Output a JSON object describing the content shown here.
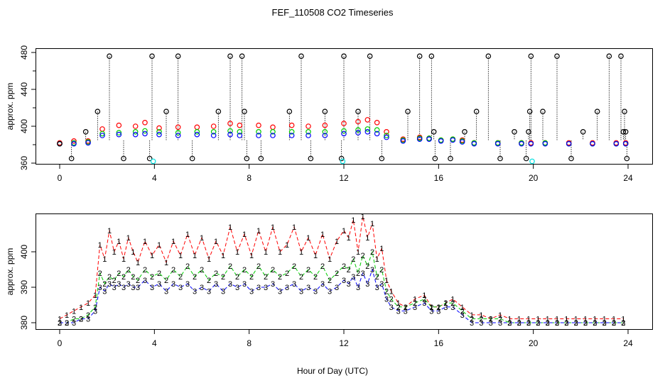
{
  "chart_data": [
    {
      "type": "scatter",
      "title": "FEF_110508  CO2 Timeseries",
      "xlabel": "",
      "ylabel": "approx. ppm",
      "xlim": [
        0,
        24
      ],
      "ylim": [
        360,
        480
      ],
      "x_ticks": [
        "0",
        "4",
        "8",
        "12",
        "16",
        "20",
        "24"
      ],
      "y_ticks": [
        "360",
        "400",
        "440",
        "480"
      ],
      "grid": false,
      "series": [
        {
          "color": "#000000",
          "marker": "circle",
          "x": [
            0.0,
            0.5,
            1.1,
            1.6,
            2.1,
            2.7,
            3.8,
            3.9,
            4.5,
            5.0,
            5.6,
            6.7,
            7.2,
            7.7,
            7.8,
            7.9,
            8.5,
            9.7,
            10.2,
            10.6,
            11.2,
            11.9,
            12.0,
            12.6,
            13.1,
            13.6,
            14.7,
            15.2,
            15.7,
            15.8,
            15.85,
            16.5,
            17.1,
            17.6,
            18.1,
            18.6,
            19.2,
            19.7,
            19.8,
            19.85,
            19.9,
            20.4,
            21.0,
            21.6,
            22.1,
            22.7,
            23.2,
            23.7,
            23.8,
            23.85,
            23.9,
            23.95
          ],
          "y": [
            381,
            365,
            394,
            416,
            476,
            365,
            365,
            476,
            416,
            476,
            365,
            416,
            476,
            476,
            416,
            365,
            365,
            416,
            476,
            365,
            416,
            365,
            476,
            416,
            476,
            365,
            416,
            476,
            476,
            394,
            365,
            365,
            394,
            416,
            476,
            365,
            394,
            365,
            394,
            416,
            476,
            416,
            476,
            365,
            394,
            416,
            476,
            476,
            394,
            416,
            394,
            365
          ]
        },
        {
          "color": "#ff0000",
          "marker": "circle",
          "x": [
            0.0,
            0.6,
            1.2,
            1.8,
            2.5,
            3.2,
            3.6,
            4.2,
            5.0,
            5.8,
            6.5,
            7.2,
            7.6,
            8.4,
            9.0,
            9.8,
            10.5,
            11.2,
            12.0,
            12.6,
            13.0,
            13.4,
            13.8,
            14.5,
            15.2,
            15.6,
            16.1,
            16.6,
            17.0,
            17.5,
            18.5,
            19.5,
            19.9,
            20.5,
            21.5,
            22.5,
            23.5,
            23.9
          ],
          "y": [
            382,
            384,
            384,
            397,
            401,
            400,
            404,
            398,
            399,
            399,
            400,
            403,
            401,
            401,
            399,
            401,
            400,
            401,
            403,
            405,
            407,
            404,
            394,
            386,
            388,
            387,
            385,
            386,
            385,
            382,
            382,
            382,
            382,
            382,
            382,
            382,
            382,
            382
          ]
        },
        {
          "color": "#00cc00",
          "marker": "circle",
          "x": [
            0.0,
            0.6,
            1.2,
            1.8,
            2.5,
            3.2,
            3.6,
            4.2,
            5.0,
            5.8,
            6.5,
            7.2,
            7.6,
            8.4,
            9.0,
            9.8,
            10.5,
            11.2,
            12.0,
            12.6,
            13.0,
            13.4,
            13.8,
            14.5,
            15.2,
            15.6,
            16.1,
            16.6,
            17.0,
            17.5,
            18.5,
            19.5,
            19.9,
            20.5,
            21.5,
            22.5,
            23.5,
            23.9
          ],
          "y": [
            381,
            382,
            383,
            392,
            393,
            394,
            395,
            394,
            393,
            394,
            394,
            395,
            394,
            394,
            394,
            394,
            394,
            394,
            395,
            396,
            397,
            396,
            390,
            385,
            387,
            387,
            385,
            386,
            384,
            382,
            382,
            382,
            381,
            382,
            381,
            381,
            381,
            381
          ]
        },
        {
          "color": "#0000ff",
          "marker": "circle",
          "x": [
            0.0,
            0.6,
            1.2,
            1.8,
            2.5,
            3.2,
            3.6,
            4.2,
            5.0,
            5.8,
            6.5,
            7.2,
            7.6,
            8.4,
            9.0,
            9.8,
            10.5,
            11.2,
            12.0,
            12.6,
            13.0,
            13.4,
            13.8,
            14.5,
            15.2,
            15.6,
            16.1,
            16.6,
            17.0,
            17.5,
            18.5,
            19.5,
            19.9,
            20.5,
            21.5,
            22.5,
            23.5,
            23.9
          ],
          "y": [
            381,
            381,
            382,
            390,
            391,
            391,
            392,
            391,
            390,
            391,
            390,
            391,
            390,
            390,
            390,
            390,
            390,
            390,
            392,
            393,
            394,
            392,
            388,
            384,
            386,
            386,
            384,
            385,
            383,
            381,
            381,
            381,
            381,
            381,
            381,
            381,
            381,
            381
          ]
        },
        {
          "color": "#00e0e0",
          "marker": "circle",
          "x": [
            3.95,
            11.95,
            19.95
          ],
          "y": [
            362,
            362,
            362
          ]
        }
      ]
    },
    {
      "type": "line",
      "title": "",
      "xlabel": "Hour of Day (UTC)",
      "ylabel": "approx. ppm",
      "xlim": [
        0,
        24
      ],
      "y_ticks": [
        "380",
        "390",
        "400"
      ],
      "grid": false,
      "series": [
        {
          "color": "#ff0000",
          "marker": "1",
          "x": [
            0.0,
            0.3,
            0.6,
            0.9,
            1.2,
            1.5,
            1.7,
            1.9,
            2.1,
            2.3,
            2.5,
            2.7,
            2.9,
            3.1,
            3.3,
            3.6,
            3.9,
            4.2,
            4.5,
            4.8,
            5.1,
            5.4,
            5.7,
            6.0,
            6.3,
            6.6,
            6.9,
            7.2,
            7.5,
            7.8,
            8.1,
            8.4,
            8.7,
            9.0,
            9.3,
            9.6,
            9.9,
            10.2,
            10.5,
            10.8,
            11.1,
            11.4,
            11.7,
            12.0,
            12.2,
            12.4,
            12.6,
            12.8,
            13.0,
            13.2,
            13.4,
            13.6,
            13.8,
            14.0,
            14.3,
            14.6,
            15.0,
            15.4,
            15.7,
            16.0,
            16.3,
            16.6,
            17.0,
            17.4,
            17.8,
            18.2,
            18.6,
            19.0,
            19.4,
            19.8,
            20.2,
            20.6,
            21.0,
            21.4,
            21.8,
            22.2,
            22.6,
            23.0,
            23.4,
            23.8
          ],
          "y": [
            382,
            383,
            384,
            385,
            386,
            388,
            402,
            398,
            406,
            400,
            403,
            398,
            404,
            400,
            397,
            403,
            399,
            402,
            397,
            403,
            399,
            405,
            399,
            404,
            398,
            403,
            399,
            407,
            400,
            405,
            399,
            406,
            400,
            407,
            400,
            402,
            407,
            400,
            404,
            399,
            405,
            398,
            403,
            406,
            404,
            409,
            400,
            410,
            404,
            408,
            398,
            401,
            392,
            389,
            386,
            385,
            387,
            388,
            385,
            385,
            386,
            387,
            385,
            383,
            383,
            382,
            383,
            382,
            382,
            382,
            382,
            382,
            382,
            382,
            382,
            382,
            382,
            382,
            382,
            382
          ]
        },
        {
          "color": "#00cc00",
          "marker": "2",
          "x": [
            0.0,
            0.3,
            0.6,
            0.9,
            1.2,
            1.5,
            1.7,
            1.9,
            2.1,
            2.3,
            2.5,
            2.7,
            2.9,
            3.1,
            3.3,
            3.6,
            3.9,
            4.2,
            4.5,
            4.8,
            5.1,
            5.4,
            5.7,
            6.0,
            6.3,
            6.6,
            6.9,
            7.2,
            7.5,
            7.8,
            8.1,
            8.4,
            8.7,
            9.0,
            9.3,
            9.6,
            9.9,
            10.2,
            10.5,
            10.8,
            11.1,
            11.4,
            11.7,
            12.0,
            12.2,
            12.4,
            12.6,
            12.8,
            13.0,
            13.2,
            13.4,
            13.6,
            13.8,
            14.0,
            14.3,
            14.6,
            15.0,
            15.4,
            15.7,
            16.0,
            16.3,
            16.6,
            17.0,
            17.4,
            17.8,
            18.2,
            18.6,
            19.0,
            19.4,
            19.8,
            20.2,
            20.6,
            21.0,
            21.4,
            21.8,
            22.2,
            22.6,
            23.0,
            23.4,
            23.8
          ],
          "y": [
            381,
            381,
            382,
            382,
            383,
            385,
            394,
            391,
            393,
            392,
            394,
            393,
            395,
            393,
            392,
            395,
            393,
            394,
            392,
            395,
            393,
            396,
            393,
            395,
            392,
            394,
            393,
            396,
            393,
            395,
            393,
            396,
            393,
            395,
            393,
            394,
            396,
            393,
            395,
            393,
            396,
            392,
            394,
            396,
            395,
            398,
            394,
            399,
            396,
            400,
            393,
            395,
            389,
            387,
            385,
            385,
            386,
            387,
            385,
            385,
            386,
            386,
            384,
            382,
            382,
            382,
            382,
            381,
            381,
            381,
            381,
            381,
            381,
            381,
            381,
            381,
            381,
            381,
            381,
            381
          ]
        },
        {
          "color": "#0000ff",
          "marker": "3",
          "x": [
            0.0,
            0.3,
            0.6,
            0.9,
            1.2,
            1.5,
            1.7,
            1.9,
            2.1,
            2.3,
            2.5,
            2.7,
            2.9,
            3.1,
            3.3,
            3.6,
            3.9,
            4.2,
            4.5,
            4.8,
            5.1,
            5.4,
            5.7,
            6.0,
            6.3,
            6.6,
            6.9,
            7.2,
            7.5,
            7.8,
            8.1,
            8.4,
            8.7,
            9.0,
            9.3,
            9.6,
            9.9,
            10.2,
            10.5,
            10.8,
            11.1,
            11.4,
            11.7,
            12.0,
            12.2,
            12.4,
            12.6,
            12.8,
            13.0,
            13.2,
            13.4,
            13.6,
            13.8,
            14.0,
            14.3,
            14.6,
            15.0,
            15.4,
            15.7,
            16.0,
            16.3,
            16.6,
            17.0,
            17.4,
            17.8,
            18.2,
            18.6,
            19.0,
            19.4,
            19.8,
            20.2,
            20.6,
            21.0,
            21.4,
            21.8,
            22.2,
            22.6,
            23.0,
            23.4,
            23.8
          ],
          "y": [
            381,
            381,
            381,
            382,
            382,
            384,
            390,
            389,
            391,
            390,
            391,
            390,
            391,
            390,
            390,
            392,
            390,
            391,
            389,
            391,
            390,
            391,
            389,
            390,
            389,
            391,
            389,
            391,
            390,
            391,
            389,
            390,
            390,
            391,
            389,
            390,
            391,
            389,
            390,
            389,
            391,
            389,
            390,
            392,
            391,
            393,
            390,
            394,
            391,
            395,
            390,
            391,
            387,
            385,
            384,
            384,
            385,
            386,
            384,
            384,
            385,
            385,
            383,
            381,
            381,
            381,
            381,
            381,
            381,
            381,
            381,
            381,
            381,
            381,
            381,
            381,
            381,
            381,
            381,
            381
          ]
        }
      ]
    }
  ]
}
